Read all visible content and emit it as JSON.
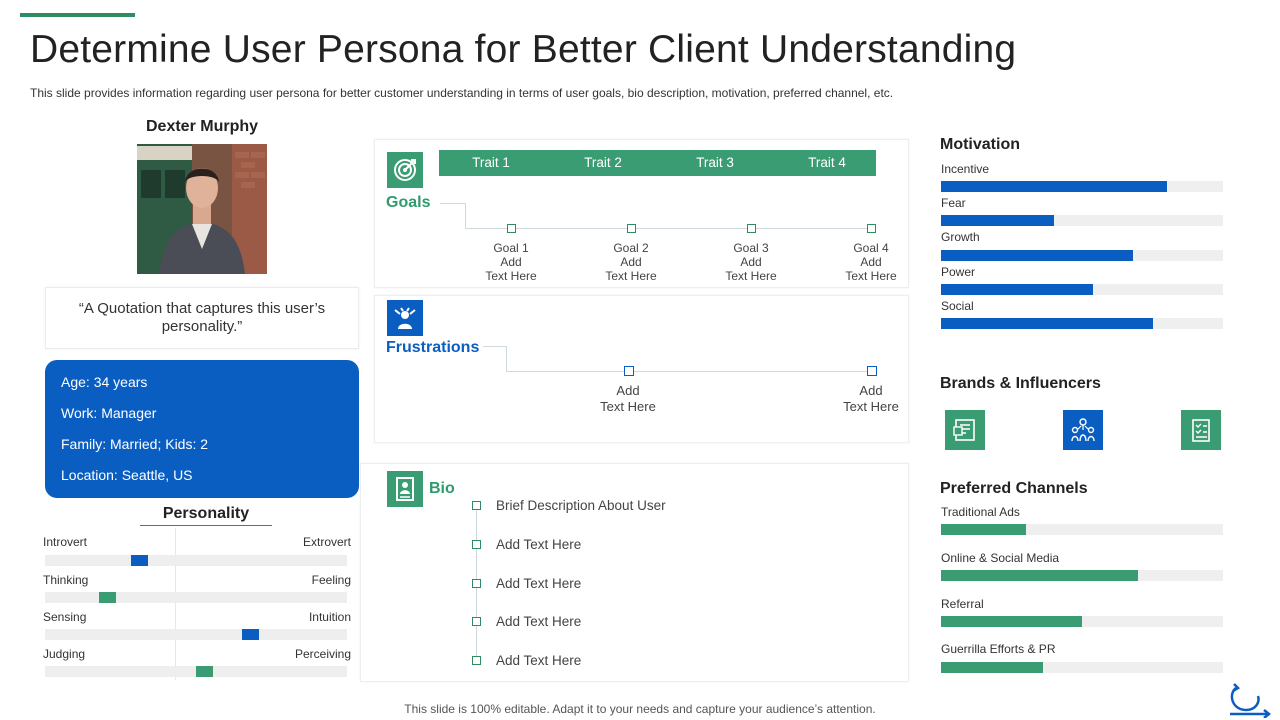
{
  "header": {
    "title": "Determine User Persona for Better Client Understanding",
    "subtitle": "This slide provides information regarding user persona for better customer understanding in terms of user goals, bio description, motivation, preferred channel, etc."
  },
  "persona": {
    "name": "Dexter Murphy",
    "quote": "“A Quotation that captures this user’s personality.”",
    "info": [
      "Age: 34 years",
      "Work: Manager",
      "Family: Married; Kids: 2",
      "Location: Seattle, US"
    ]
  },
  "personality": {
    "title": "Personality",
    "traits": [
      {
        "left": "Introvert",
        "right": "Extrovert",
        "value": 0.3,
        "color": "#0a5ec2"
      },
      {
        "left": "Thinking",
        "right": "Feeling",
        "value": 0.19,
        "color": "#3a9c72"
      },
      {
        "left": "Sensing",
        "right": "Intuition",
        "value": 0.69,
        "color": "#0a5ec2"
      },
      {
        "left": "Judging",
        "right": "Perceiving",
        "value": 0.53,
        "color": "#3a9c72"
      }
    ]
  },
  "goals": {
    "label": "Goals",
    "traits": [
      "Trait 1",
      "Trait 2",
      "Trait 3",
      "Trait 4"
    ],
    "items": [
      {
        "title": "Goal 1",
        "line1": "Add",
        "line2": "Text Here"
      },
      {
        "title": "Goal 2",
        "line1": "Add",
        "line2": "Text Here"
      },
      {
        "title": "Goal 3",
        "line1": "Add",
        "line2": "Text Here"
      },
      {
        "title": "Goal 4",
        "line1": "Add",
        "line2": "Text Here"
      }
    ]
  },
  "frustrations": {
    "label": "Frustrations",
    "items": [
      {
        "line1": "Add",
        "line2": "Text Here"
      },
      {
        "line1": "Add",
        "line2": "Text Here"
      }
    ]
  },
  "bio": {
    "label": "Bio",
    "items": [
      "Brief Description About User",
      "Add Text Here",
      "Add Text Here",
      "Add Text Here",
      "Add Text Here"
    ]
  },
  "motivation": {
    "title": "Motivation",
    "items": [
      {
        "label": "Incentive",
        "value": 0.8
      },
      {
        "label": "Fear",
        "value": 0.4
      },
      {
        "label": "Growth",
        "value": 0.68
      },
      {
        "label": "Power",
        "value": 0.54
      },
      {
        "label": "Social",
        "value": 0.75
      }
    ],
    "color": "#0a5ec2"
  },
  "brands": {
    "title": "Brands & Influencers",
    "icons": [
      "document-list-icon",
      "people-network-icon",
      "checklist-icon"
    ]
  },
  "channels": {
    "title": "Preferred Channels",
    "items": [
      {
        "label": "Traditional Ads",
        "value": 0.3
      },
      {
        "label": "Online & Social Media",
        "value": 0.7
      },
      {
        "label": "Referral",
        "value": 0.5
      },
      {
        "label": "Guerrilla Efforts & PR",
        "value": 0.36
      }
    ],
    "color": "#3a9c72"
  },
  "footer": "This slide is 100% editable. Adapt it to your needs and capture your audience’s attention."
}
